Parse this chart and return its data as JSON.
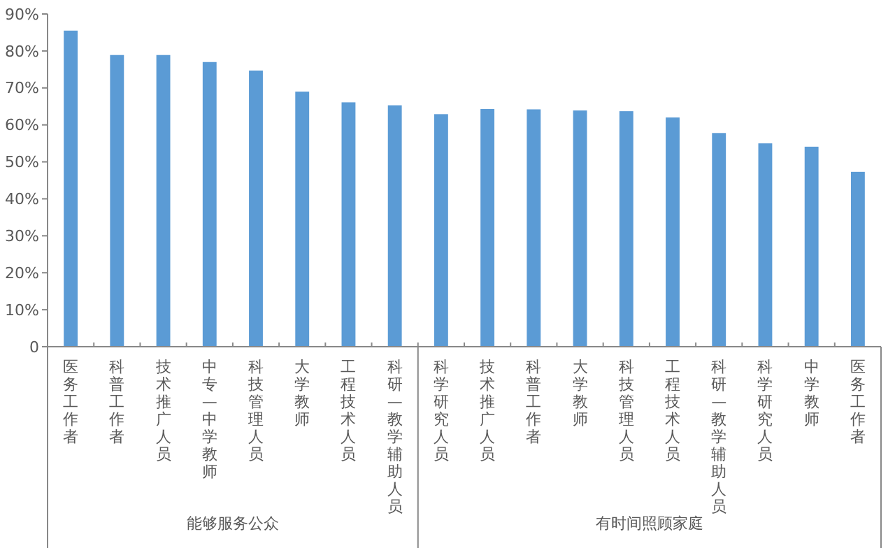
{
  "chart_data": {
    "type": "bar",
    "categories": [
      "医务工作者",
      "科普工作者",
      "技术推广人员",
      "中专—中学教师",
      "科技管理人员",
      "大学教师",
      "工程技术人员",
      "科研—教学辅助人员",
      "科学研究人员",
      "技术推广人员",
      "科普工作者",
      "大学教师",
      "科技管理人员",
      "工程技术人员",
      "科研—教学辅助人员",
      "科学研究人员",
      "中学教师",
      "医务工作者"
    ],
    "values": [
      85.5,
      78.9,
      78.9,
      77.0,
      74.7,
      69.0,
      66.1,
      65.3,
      62.9,
      64.3,
      64.2,
      63.9,
      63.7,
      62.0,
      57.8,
      55.0,
      54.1,
      47.3
    ],
    "color": "#5b9bd5",
    "ylim": [
      0,
      90
    ],
    "yticks": [
      0,
      {
        "value": 10,
        "label": "10%"
      },
      {
        "value": 20,
        "label": "20%"
      },
      {
        "value": 30,
        "label": "30%"
      },
      {
        "value": 40,
        "label": "40%"
      },
      {
        "value": 50,
        "label": "50%"
      },
      {
        "value": 60,
        "label": "60%"
      },
      {
        "value": 70,
        "label": "70%"
      },
      {
        "value": 80,
        "label": "80%"
      },
      {
        "value": 90,
        "label": "90%"
      }
    ],
    "grid": false,
    "annotations": [
      "能够服务公众",
      "有时间照顾家庭"
    ]
  }
}
